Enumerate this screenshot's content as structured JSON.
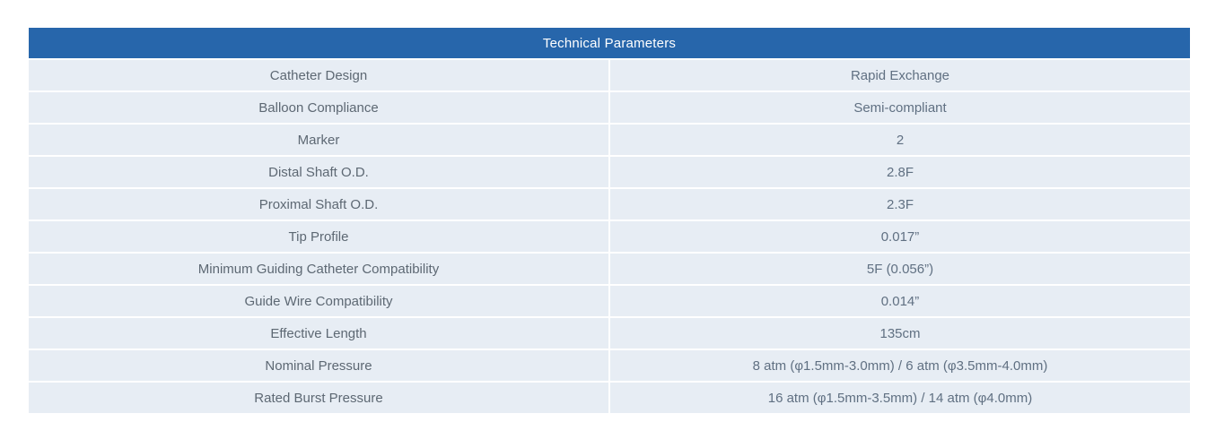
{
  "colors": {
    "header_bg": "#2766ab",
    "header_text": "#ffffff",
    "cell_bg": "#e7edf4",
    "label_text": "#5d6873",
    "value_text": "#607082",
    "gridline": "#ffffff"
  },
  "table": {
    "title": "Technical Parameters",
    "rows": [
      {
        "label": "Catheter Design",
        "value": "Rapid Exchange"
      },
      {
        "label": "Balloon Compliance",
        "value": "Semi-compliant"
      },
      {
        "label": "Marker",
        "value": "2"
      },
      {
        "label": "Distal Shaft O.D.",
        "value": "2.8F"
      },
      {
        "label": "Proximal Shaft O.D.",
        "value": "2.3F"
      },
      {
        "label": "Tip Profile",
        "value": "0.017”"
      },
      {
        "label": "Minimum Guiding Catheter Compatibility",
        "value": "5F (0.056”)"
      },
      {
        "label": "Guide Wire Compatibility",
        "value": "0.014”"
      },
      {
        "label": "Effective Length",
        "value": "135cm"
      },
      {
        "label": "Nominal Pressure",
        "value": "8 atm (φ1.5mm-3.0mm) / 6 atm (φ3.5mm-4.0mm)"
      },
      {
        "label": "Rated Burst Pressure",
        "value": "16 atm (φ1.5mm-3.5mm) / 14 atm (φ4.0mm)"
      }
    ]
  }
}
